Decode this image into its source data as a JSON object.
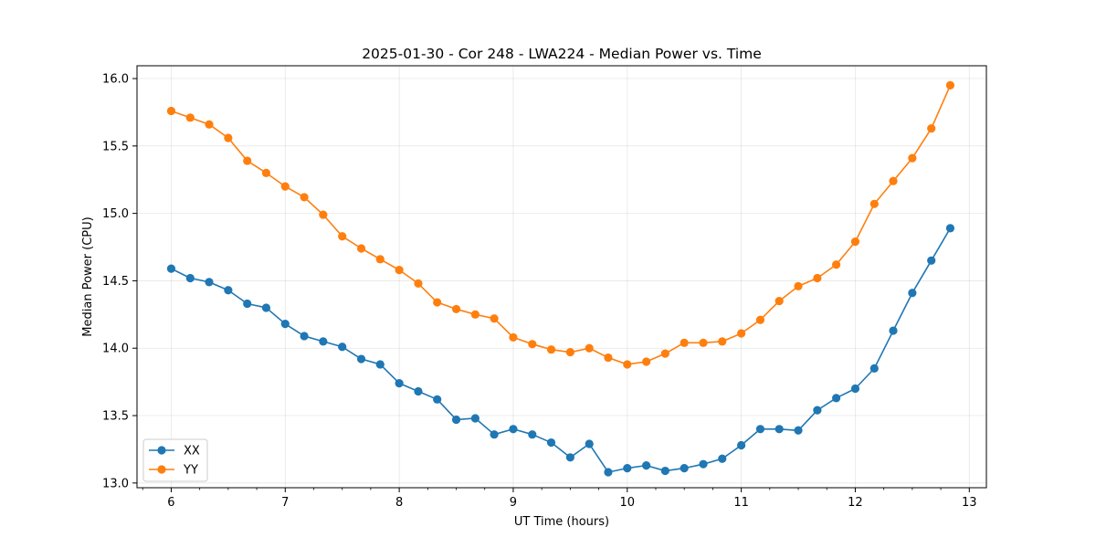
{
  "chart_data": {
    "type": "line",
    "title": "2025-01-30 - Cor 248 - LWA224 - Median Power vs. Time",
    "xlabel": "UT Time (hours)",
    "ylabel": "Median Power (CPU)",
    "xlim": [
      5.7,
      13.15
    ],
    "ylim": [
      12.965,
      16.095
    ],
    "xticks": [
      6,
      7,
      8,
      9,
      10,
      11,
      12,
      13
    ],
    "yticks": [
      13.0,
      13.5,
      14.0,
      14.5,
      15.0,
      15.5,
      16.0
    ],
    "ytick_labels": [
      "13.0",
      "13.5",
      "14.0",
      "14.5",
      "15.0",
      "15.5",
      "16.0"
    ],
    "grid": true,
    "legend_position": "lower-left",
    "x": [
      6.0,
      6.167,
      6.333,
      6.5,
      6.667,
      6.833,
      7.0,
      7.167,
      7.333,
      7.5,
      7.667,
      7.833,
      8.0,
      8.167,
      8.333,
      8.5,
      8.667,
      8.833,
      9.0,
      9.167,
      9.333,
      9.5,
      9.667,
      9.833,
      10.0,
      10.167,
      10.333,
      10.5,
      10.667,
      10.833,
      11.0,
      11.167,
      11.333,
      11.5,
      11.667,
      11.833,
      12.0,
      12.167,
      12.333,
      12.5,
      12.667,
      12.833
    ],
    "series": [
      {
        "name": "XX",
        "color": "#1f77b4",
        "values": [
          14.59,
          14.52,
          14.49,
          14.43,
          14.33,
          14.3,
          14.18,
          14.09,
          14.05,
          14.01,
          13.92,
          13.88,
          13.74,
          13.68,
          13.62,
          13.47,
          13.48,
          13.36,
          13.4,
          13.36,
          13.3,
          13.19,
          13.29,
          13.08,
          13.11,
          13.13,
          13.09,
          13.11,
          13.14,
          13.18,
          13.28,
          13.4,
          13.4,
          13.39,
          13.54,
          13.63,
          13.7,
          13.85,
          14.13,
          14.41,
          14.65,
          14.89
        ]
      },
      {
        "name": "YY",
        "color": "#ff7f0e",
        "values": [
          15.76,
          15.71,
          15.66,
          15.56,
          15.39,
          15.3,
          15.2,
          15.12,
          14.99,
          14.83,
          14.74,
          14.66,
          14.58,
          14.48,
          14.34,
          14.29,
          14.25,
          14.22,
          14.08,
          14.03,
          13.99,
          13.97,
          14.0,
          13.93,
          13.88,
          13.9,
          13.96,
          14.04,
          14.04,
          14.05,
          14.11,
          14.21,
          14.35,
          14.46,
          14.52,
          14.62,
          14.79,
          15.07,
          15.24,
          15.41,
          15.63,
          15.95
        ]
      }
    ]
  }
}
